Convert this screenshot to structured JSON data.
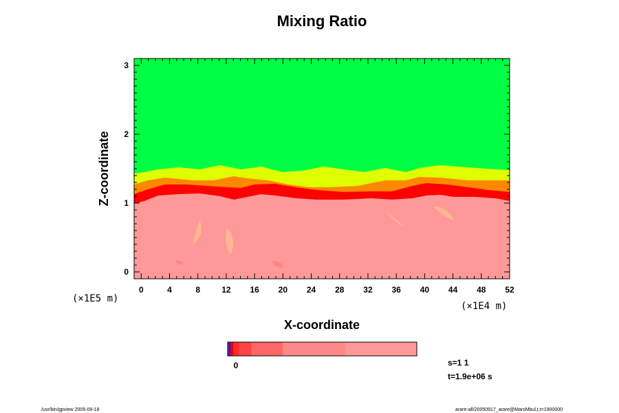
{
  "chart_data": {
    "type": "heatmap",
    "title": "Mixing Ratio",
    "xlabel": "X-coordinate",
    "ylabel": "Z-coordinate",
    "xlim": [
      -1,
      52
    ],
    "ylim": [
      -0.1,
      3.1
    ],
    "x_ticks": [
      0,
      4,
      8,
      12,
      16,
      20,
      24,
      28,
      32,
      36,
      40,
      44,
      48,
      52
    ],
    "y_ticks": [
      0,
      1,
      2,
      3
    ],
    "x_scale_label": "(×1E4 m)",
    "y_scale_label": "(×1E5 m)",
    "field_description": "Green (high) region above z≈1.5, mixing layer of yellow/orange/red between z≈1.0 and z≈1.5, pink (low) region below z≈1.0",
    "layers": [
      {
        "name": "upper",
        "z_from": 1.5,
        "z_to": 3.1,
        "color": "#00ff44"
      },
      {
        "name": "transition-yellow",
        "z_from": 1.3,
        "z_to": 1.5,
        "color": "#ddff00"
      },
      {
        "name": "transition-orange",
        "z_from": 1.15,
        "z_to": 1.3,
        "color": "#ff8800"
      },
      {
        "name": "transition-red",
        "z_from": 1.0,
        "z_to": 1.15,
        "color": "#ff0000"
      },
      {
        "name": "lower",
        "z_from": -0.1,
        "z_to": 1.0,
        "color": "#ff9999"
      }
    ],
    "colorbar": {
      "segments": [
        {
          "color": "#6a1fbf",
          "weight": 3
        },
        {
          "color": "#2222cc",
          "weight": 3
        },
        {
          "color": "#ee0000",
          "weight": 6
        },
        {
          "color": "#ff2a2a",
          "weight": 12
        },
        {
          "color": "#ff4444",
          "weight": 26
        },
        {
          "color": "#ff6666",
          "weight": 66
        },
        {
          "color": "#ff8888",
          "weight": 132
        },
        {
          "color": "#ff9999",
          "weight": 152
        }
      ],
      "tick_label": "0"
    },
    "annotations": {
      "step": "s=1 1",
      "time": "t=1.9e+06 s"
    },
    "footer_left": "/usr/bin/gpview 2005-09-18",
    "footer_right": "arare-all/20050917_arare@MarsMbul,t,t=1900000"
  }
}
